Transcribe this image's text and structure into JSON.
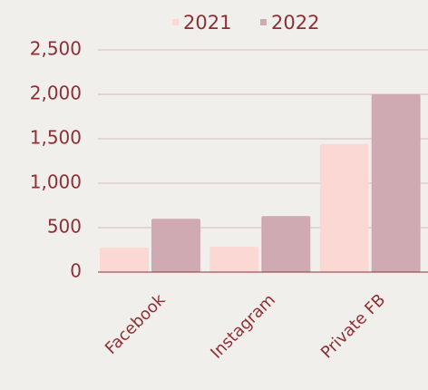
{
  "chart_data": {
    "type": "bar",
    "categories": [
      "Facebook",
      "Instagram",
      "Private FB"
    ],
    "series": [
      {
        "name": "2021",
        "color": "#fcd8d4",
        "values": [
          275,
          285,
          1440
        ]
      },
      {
        "name": "2022",
        "color": "#cfaab2",
        "values": [
          600,
          630,
          2000
        ]
      }
    ],
    "ylim": [
      0,
      2500
    ],
    "yticks": [
      0,
      500,
      {
        "value": 1000,
        "label": "1,000"
      },
      {
        "value": 1500,
        "label": "1,500"
      },
      {
        "value": 2000,
        "label": "2,000"
      },
      {
        "value": 2500,
        "label": "2,500"
      }
    ],
    "grid": true,
    "legend": "top"
  }
}
